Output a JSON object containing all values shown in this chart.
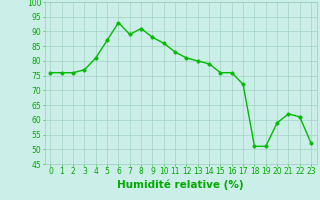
{
  "x": [
    0,
    1,
    2,
    3,
    4,
    5,
    6,
    7,
    8,
    9,
    10,
    11,
    12,
    13,
    14,
    15,
    16,
    17,
    18,
    19,
    20,
    21,
    22,
    23
  ],
  "y": [
    76,
    76,
    76,
    77,
    81,
    87,
    93,
    89,
    91,
    88,
    86,
    83,
    81,
    80,
    79,
    76,
    76,
    72,
    51,
    51,
    59,
    62,
    61,
    52
  ],
  "line_color": "#00bb00",
  "marker_color": "#00bb00",
  "bg_color": "#cceee8",
  "grid_color": "#99ccbb",
  "xlabel": "Humidité relative (%)",
  "xlabel_color": "#00aa00",
  "ylim": [
    45,
    100
  ],
  "xlim": [
    -0.5,
    23.5
  ],
  "yticks": [
    45,
    50,
    55,
    60,
    65,
    70,
    75,
    80,
    85,
    90,
    95,
    100
  ],
  "xticks": [
    0,
    1,
    2,
    3,
    4,
    5,
    6,
    7,
    8,
    9,
    10,
    11,
    12,
    13,
    14,
    15,
    16,
    17,
    18,
    19,
    20,
    21,
    22,
    23
  ],
  "tick_color": "#00aa00",
  "tick_fontsize": 5.5,
  "xlabel_fontsize": 7.5,
  "line_width": 1.0,
  "marker_size": 2.5
}
